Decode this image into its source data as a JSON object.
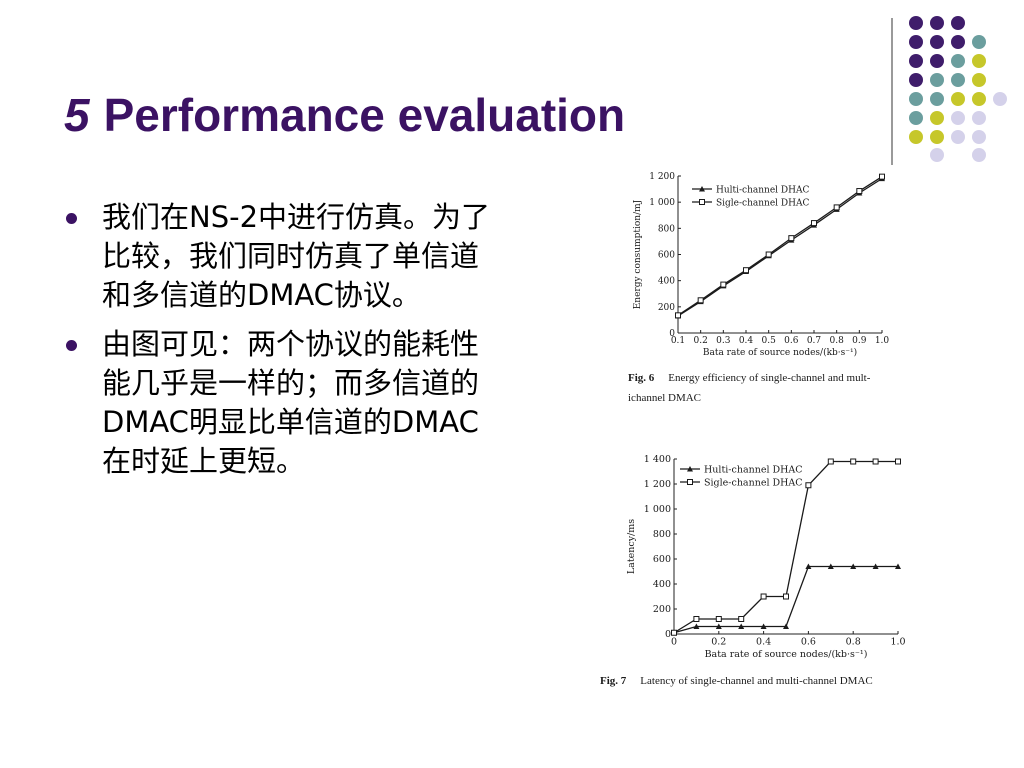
{
  "slide": {
    "title_number": "5",
    "title_text": "Performance evaluation",
    "bullets": [
      {
        "text": "我们在NS-2中进行仿真。为了比较，我们同时仿真了单信道和多信道的DMAC协议。"
      },
      {
        "text": "由图可见：两个协议的能耗性能几乎是一样的；而多信道的DMAC明显比单信道的DMAC在时延上更短。"
      }
    ]
  },
  "decoration": {
    "colors": {
      "purple": "#3f1d6b",
      "teal": "#6b9e9e",
      "olive": "#c6c72a",
      "lavender": "#d4d1ea"
    }
  },
  "chart_data": [
    {
      "type": "line",
      "caption_label": "Fig. 6",
      "caption_text": "Energy efficiency of single-channel and multichannel DMAC",
      "caption_line1": "Energy efficiency of single-channel and mult-",
      "caption_line2": "ichannel DMAC",
      "xlabel": "Bata rate of source nodes/(kb·s⁻¹)",
      "ylabel": "Energy consumption/mJ",
      "xlim": [
        0.1,
        1.0
      ],
      "ylim": [
        0,
        1200
      ],
      "x_ticks": [
        "0.1",
        "0.2",
        "0.3",
        "0.4",
        "0.5",
        "0.6",
        "0.7",
        "0.8",
        "0.9",
        "1.0"
      ],
      "y_ticks": [
        "0",
        "200",
        "400",
        "600",
        "800",
        "1 000",
        "1 200"
      ],
      "legend_position": "top-left",
      "x": [
        0.1,
        0.2,
        0.3,
        0.4,
        0.5,
        0.6,
        0.7,
        0.8,
        0.9,
        1.0
      ],
      "series": [
        {
          "name": "Hulti-channel DHAC",
          "marker": "triangle",
          "values": [
            130,
            240,
            360,
            470,
            590,
            710,
            825,
            945,
            1070,
            1180
          ]
        },
        {
          "name": "Sigle-channel DHAC",
          "marker": "square",
          "values": [
            135,
            250,
            370,
            480,
            600,
            725,
            840,
            960,
            1085,
            1195
          ]
        }
      ]
    },
    {
      "type": "line",
      "caption_label": "Fig. 7",
      "caption_text": "Latency of single-channel and multi-channel DMAC",
      "xlabel": "Bata rate of source nodes/(kb·s⁻¹)",
      "ylabel": "Latency/ms",
      "xlim": [
        0,
        1.0
      ],
      "ylim": [
        0,
        1400
      ],
      "x_ticks": [
        "0",
        "0.2",
        "0.4",
        "0.6",
        "0.8",
        "1.0"
      ],
      "y_ticks": [
        "0",
        "200",
        "400",
        "600",
        "800",
        "1 000",
        "1 200",
        "1 400"
      ],
      "legend_position": "top-left",
      "x": [
        0,
        0.1,
        0.2,
        0.3,
        0.4,
        0.5,
        0.6,
        0.7,
        0.8,
        0.9,
        1.0
      ],
      "series": [
        {
          "name": "Hulti-channel DHAC",
          "marker": "triangle",
          "values": [
            10,
            60,
            60,
            60,
            60,
            60,
            540,
            540,
            540,
            540,
            540
          ]
        },
        {
          "name": "Sigle-channel DHAC",
          "marker": "square",
          "values": [
            10,
            120,
            120,
            120,
            300,
            300,
            1190,
            1380,
            1380,
            1380,
            1380
          ]
        }
      ]
    }
  ]
}
